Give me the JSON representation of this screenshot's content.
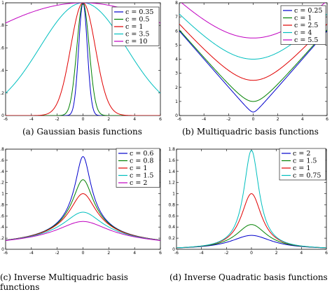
{
  "panels": [
    {
      "caption": "(a)  Gaussian basis functions",
      "chart_data": {
        "type": "line",
        "function": "gaussian",
        "xlim": [
          -6,
          6
        ],
        "ylim": [
          0,
          1
        ],
        "xticks": [
          -6,
          -4,
          -2,
          0,
          2,
          4,
          6
        ],
        "yticks": [
          0,
          0.2,
          0.4,
          0.6,
          0.8,
          1
        ],
        "series": [
          {
            "name": "c = 0.35",
            "c": 0.35,
            "color": "#0000cc"
          },
          {
            "name": "c = 0.5",
            "c": 0.5,
            "color": "#008000"
          },
          {
            "name": "c = 1",
            "c": 1,
            "color": "#e00000"
          },
          {
            "name": "c = 3.5",
            "c": 3.5,
            "color": "#00bfbf"
          },
          {
            "name": "c = 10",
            "c": 10,
            "color": "#c000c0"
          }
        ]
      }
    },
    {
      "caption": "(b)  Multiquadric basis functions",
      "chart_data": {
        "type": "line",
        "function": "multiquadric",
        "xlim": [
          -6,
          6
        ],
        "ylim": [
          0,
          8
        ],
        "xticks": [
          -6,
          -4,
          -2,
          0,
          2,
          4,
          6
        ],
        "yticks": [
          0,
          1,
          2,
          3,
          4,
          5,
          6,
          7,
          8
        ],
        "series": [
          {
            "name": "c = 0.25",
            "c": 0.25,
            "color": "#0000cc"
          },
          {
            "name": "c = 1",
            "c": 1,
            "color": "#008000"
          },
          {
            "name": "c = 2.5",
            "c": 2.5,
            "color": "#e00000"
          },
          {
            "name": "c = 4",
            "c": 4,
            "color": "#00bfbf"
          },
          {
            "name": "c = 5.5",
            "c": 5.5,
            "color": "#c000c0"
          }
        ]
      }
    },
    {
      "caption": "(c)  Inverse  Multiquadric  basis  functions",
      "chart_data": {
        "type": "line",
        "function": "inverse-multiquadric",
        "xlim": [
          -6,
          6
        ],
        "ylim": [
          0,
          1.8
        ],
        "xticks": [
          -6,
          -4,
          -2,
          0,
          2,
          4,
          6
        ],
        "yticks": [
          0,
          0.2,
          0.4,
          0.6,
          0.8,
          1,
          1.2,
          1.4,
          1.6,
          1.8
        ],
        "series": [
          {
            "name": "c = 0.6",
            "c": 0.6,
            "color": "#0000cc"
          },
          {
            "name": "c = 0.8",
            "c": 0.8,
            "color": "#008000"
          },
          {
            "name": "c = 1",
            "c": 1,
            "color": "#e00000"
          },
          {
            "name": "c = 1.5",
            "c": 1.5,
            "color": "#00bfbf"
          },
          {
            "name": "c = 2",
            "c": 2,
            "color": "#c000c0"
          }
        ]
      }
    },
    {
      "caption": "(d)  Inverse Quadratic basis functions",
      "chart_data": {
        "type": "line",
        "function": "inverse-quadratic",
        "xlim": [
          -6,
          6
        ],
        "ylim": [
          0,
          1.8
        ],
        "xticks": [
          -6,
          -4,
          -2,
          0,
          2,
          4,
          6
        ],
        "yticks": [
          0,
          0.2,
          0.4,
          0.6,
          0.8,
          1,
          1.2,
          1.4,
          1.6,
          1.8
        ],
        "series": [
          {
            "name": "c = 2",
            "c": 2,
            "color": "#0000cc"
          },
          {
            "name": "c = 1.5",
            "c": 1.5,
            "color": "#008000"
          },
          {
            "name": "c = 1",
            "c": 1,
            "color": "#e00000"
          },
          {
            "name": "c = 0.75",
            "c": 0.75,
            "color": "#00bfbf"
          }
        ]
      }
    }
  ]
}
